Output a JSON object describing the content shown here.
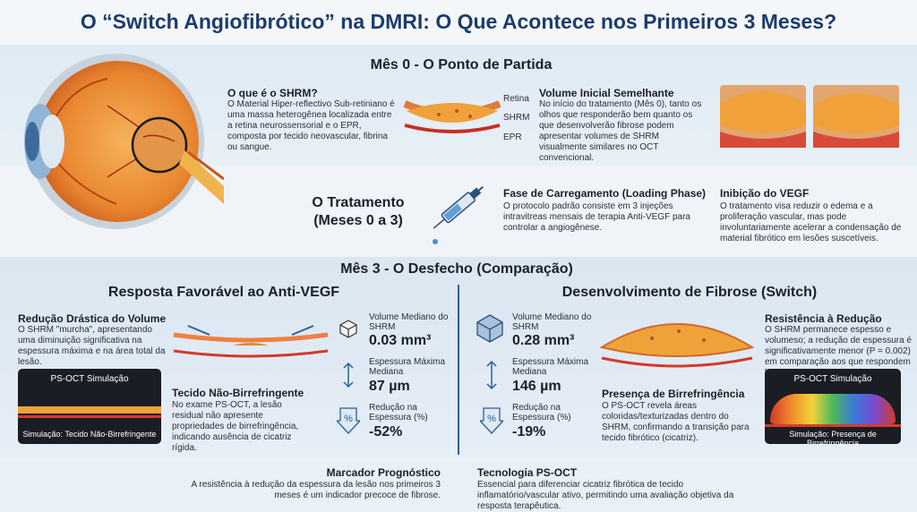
{
  "title": "O “Switch Angiofibrótico” na DMRI: O Que Acontece nos Primeiros 3 Meses?",
  "month0": {
    "heading": "Mês 0 - O Ponto de Partida",
    "what_title": "O que é o SHRM?",
    "what_text": "O Material Hiper-reflectivo Sub-retiniano é uma massa heterogênea localizada entre a retina neurossensorial e o EPR, composta por tecido neovascular, fibrina ou sangue.",
    "labels": [
      "Retina",
      "SHRM",
      "EPR"
    ],
    "volume_title": "Volume Inicial Semelhante",
    "volume_text": "No início do tratamento (Mês 0), tanto os olhos que responderão bem quanto os que desenvolverão fibrose podem apresentar volumes de SHRM visualmente similares no OCT convencional."
  },
  "treatment": {
    "heading_line1": "O Tratamento",
    "heading_line2": "(Meses 0 a 3)",
    "loading_title": "Fase de Carregamento (Loading Phase)",
    "loading_text": "O protocolo padrão consiste em 3 injeções intravitreas mensais de terapia Anti-VEGF para controlar a angiogênese.",
    "vegf_title": "Inibição do VEGF",
    "vegf_text": "O tratamento visa reduzir o edema e a proliferação vascular, mas pode involuntariamente acelerar a condensação de material fibrótico em lesões suscetíveis."
  },
  "month3": {
    "heading": "Mês 3 - O Desfecho (Comparação)",
    "left": {
      "heading": "Resposta Favorável ao Anti-VEGF",
      "reduction_title": "Redução Drástica do Volume",
      "reduction_text": "O SHRM \"murcha\", apresentando uma diminuição significativa na espessura máxima e na área total da lesão.",
      "sim_title": "PS-OCT Simulação",
      "sim_caption": "Simulação: Tecido Não-Birrefringente",
      "tissue_title": "Tecido Não-Birrefringente",
      "tissue_text": "No exame PS-OCT, a lesão residual não apresente propriedades de birrefringência, indicando ausência de cicatriz rígida.",
      "stats": [
        {
          "label": "Volume Mediano do SHRM",
          "value": "0.03 mm³"
        },
        {
          "label": "Espessura Máxima Mediana",
          "value": "87 µm"
        },
        {
          "label": "Redução na Espessura (%)",
          "value": "-52%"
        }
      ]
    },
    "right": {
      "heading": "Desenvolvimento de Fibrose (Switch)",
      "stats": [
        {
          "label": "Volume Mediano do SHRM",
          "value": "0.28 mm³"
        },
        {
          "label": "Espessura Máxima Mediana",
          "value": "146 µm"
        },
        {
          "label": "Redução na Espessura (%)",
          "value": "-19%"
        }
      ],
      "presence_title": "Presença de Birrefringência",
      "presence_text": "O PS-OCT revela áreas coloridas/texturizadas dentro do SHRM, confirmando a transição para tecido fibrótico (cicatriz).",
      "resist_title": "Resistência à Redução",
      "resist_text": "O SHRM permanece espesso e volumeso; a redução de espessura é significativamente menor (P = 0.002) em comparação aos que respondem bem.",
      "sim_title": "PS-OCT Simulação",
      "sim_caption": "Simulação: Presença de Birrefringência"
    }
  },
  "footer": {
    "marker_title": "Marcador Prognóstico",
    "marker_text": "A resistência à redução da espessura da lesão nos primeiros 3 meses é um indicador precoce de fibrose.",
    "tech_title": "Tecnologia PS-OCT",
    "tech_text": "Essencial para diferenciar cicatriz fibrótica de tecido inflamatório/vascular ativo, permitindo uma avaliação objetiva da resposta terapêutica."
  }
}
